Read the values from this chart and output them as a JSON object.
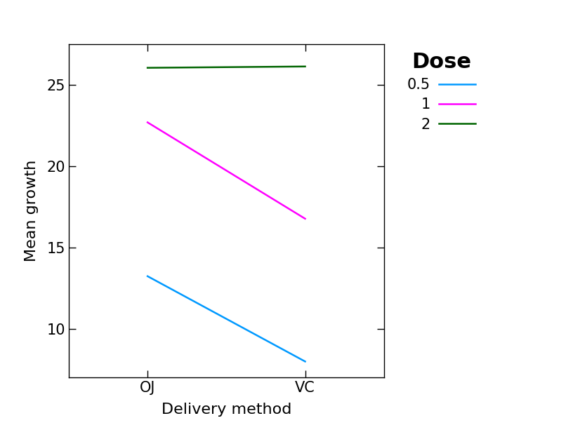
{
  "x_categories": [
    "OJ",
    "VC"
  ],
  "x_positions": [
    1,
    2
  ],
  "series": [
    {
      "label": "0.5",
      "color": "#0099FF",
      "y": [
        13.23,
        7.98
      ]
    },
    {
      "label": "1",
      "color": "#FF00FF",
      "y": [
        22.7,
        16.77
      ]
    },
    {
      "label": "2",
      "color": "#006400",
      "y": [
        26.06,
        26.14
      ]
    }
  ],
  "xlabel": "Delivery method",
  "ylabel": "Mean growth",
  "legend_title": "Dose",
  "ylim": [
    7.0,
    27.5
  ],
  "xlim": [
    0.5,
    2.5
  ],
  "yticks": [
    10,
    15,
    20,
    25
  ],
  "xticks": [
    1,
    2
  ],
  "axis_label_fontsize": 16,
  "tick_fontsize": 15,
  "legend_fontsize": 15,
  "legend_title_fontsize": 22,
  "line_width": 1.8,
  "background_color": "#ffffff"
}
